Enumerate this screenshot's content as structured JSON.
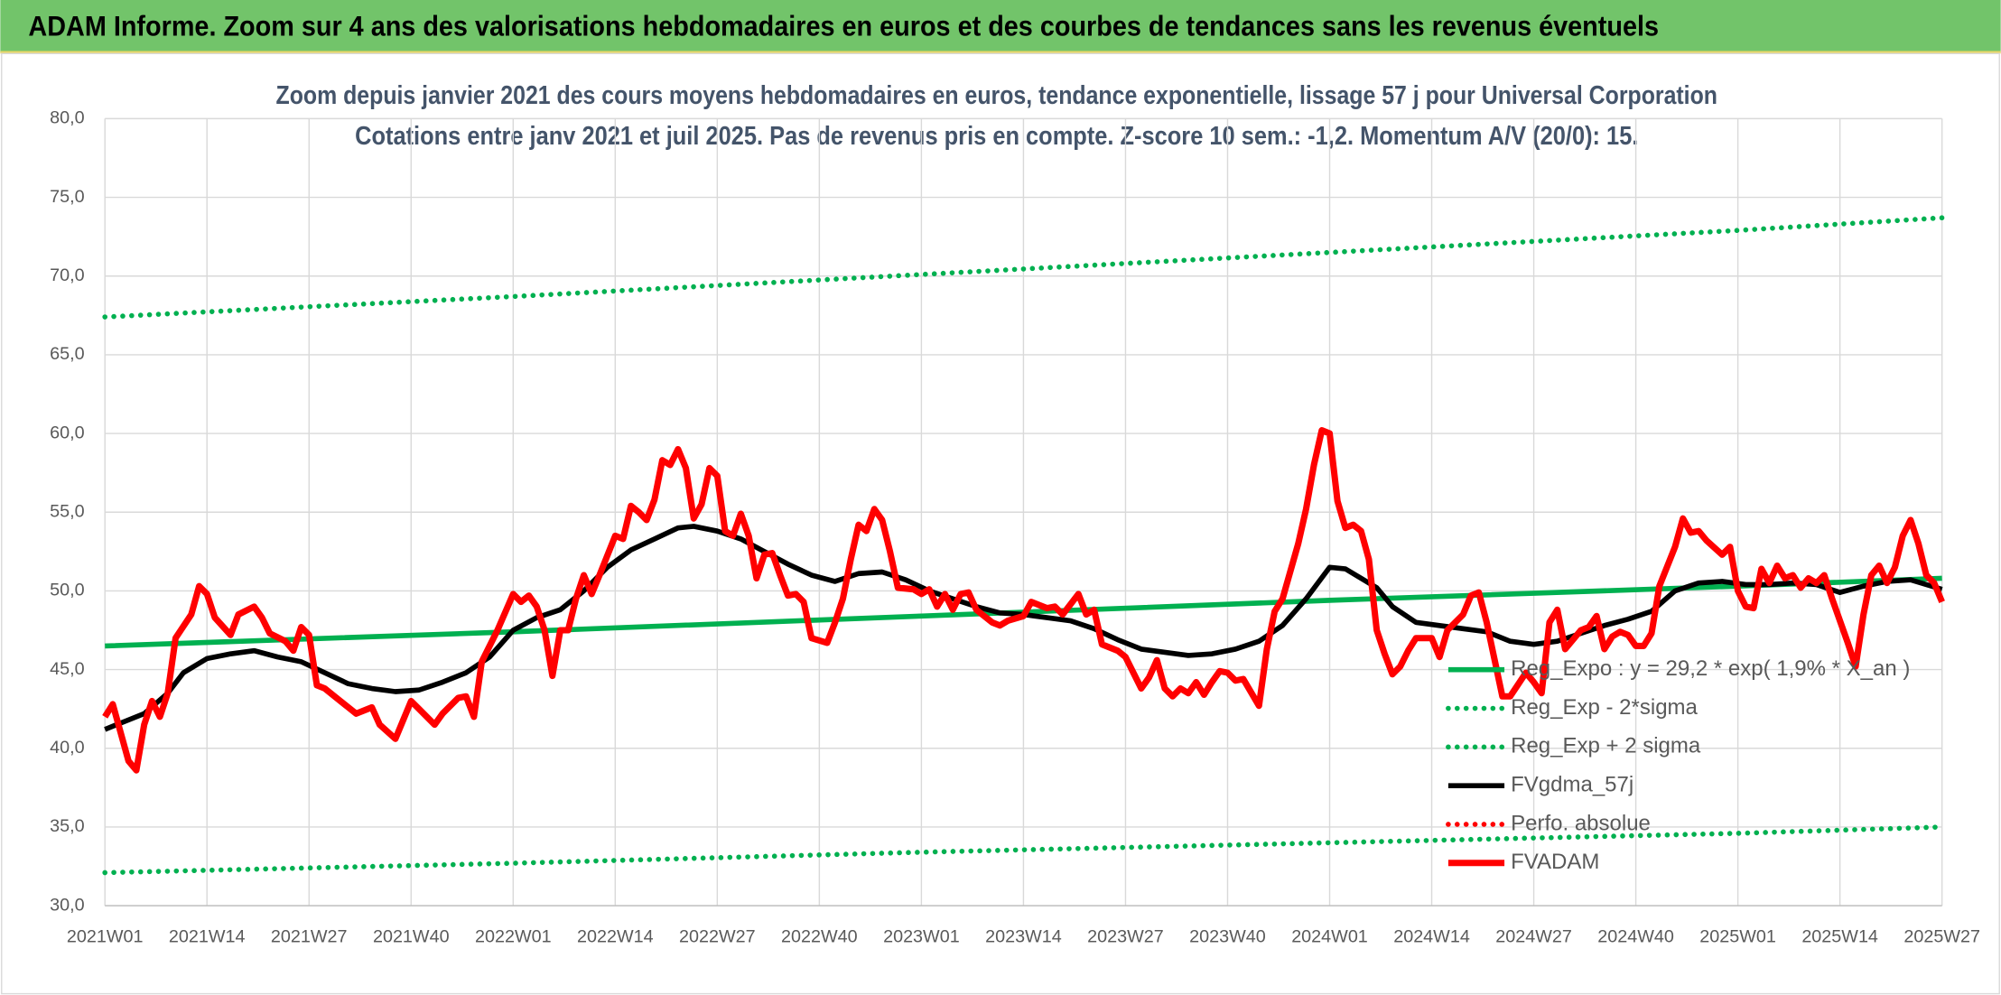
{
  "chart_data": {
    "type": "line",
    "title": "ADAM Informe. Zoom sur 4 ans des valorisations hebdomadaires en euros et des courbes de tendances sans les revenus éventuels",
    "subtitle": [
      "Zoom depuis janvier 2021 des cours moyens hebdomadaires en euros, tendance exponentielle, lissage 57 j pour Universal Corporation",
      "Cotations entre janv 2021 et juil 2025. Pas de revenus pris en compte. Z-score 10 sem.: -1,2. Momentum A/V (20/0): 15."
    ],
    "xlim": [
      0,
      234
    ],
    "xticks": [
      {
        "value": 0,
        "label": "2021W01"
      },
      {
        "value": 13,
        "label": "2021W14"
      },
      {
        "value": 26,
        "label": "2021W27"
      },
      {
        "value": 39,
        "label": "2021W40"
      },
      {
        "value": 52,
        "label": "2022W01"
      },
      {
        "value": 65,
        "label": "2022W14"
      },
      {
        "value": 78,
        "label": "2022W27"
      },
      {
        "value": 91,
        "label": "2022W40"
      },
      {
        "value": 104,
        "label": "2023W01"
      },
      {
        "value": 117,
        "label": "2023W14"
      },
      {
        "value": 130,
        "label": "2023W27"
      },
      {
        "value": 143,
        "label": "2023W40"
      },
      {
        "value": 156,
        "label": "2024W01"
      },
      {
        "value": 169,
        "label": "2024W14"
      },
      {
        "value": 182,
        "label": "2024W27"
      },
      {
        "value": 195,
        "label": "2024W40"
      },
      {
        "value": 208,
        "label": "2025W01"
      },
      {
        "value": 221,
        "label": "2025W14"
      },
      {
        "value": 234,
        "label": "2025W27"
      }
    ],
    "ylim": [
      30,
      80
    ],
    "yticks": [
      {
        "value": 30,
        "label": "30,0"
      },
      {
        "value": 35,
        "label": "35,0"
      },
      {
        "value": 40,
        "label": "40,0"
      },
      {
        "value": 45,
        "label": "45,0"
      },
      {
        "value": 50,
        "label": "50,0"
      },
      {
        "value": 55,
        "label": "55,0"
      },
      {
        "value": 60,
        "label": "60,0"
      },
      {
        "value": 65,
        "label": "65,0"
      },
      {
        "value": 70,
        "label": "70,0"
      },
      {
        "value": 75,
        "label": "75,0"
      },
      {
        "value": 80,
        "label": "80,0"
      }
    ],
    "grid": true,
    "legend": "right",
    "series": [
      {
        "name": "Reg_Expo : y = 29,2 * exp( 1,9% *  X_an )",
        "color": "#00b050",
        "style": "solid",
        "x": [
          0,
          52,
          104,
          156,
          208,
          234
        ],
        "values": [
          46.5,
          47.4,
          48.4,
          49.4,
          50.3,
          50.8
        ]
      },
      {
        "name": "Reg_Exp - 2*sigma",
        "color": "#00b050",
        "style": "dotted",
        "x": [
          0,
          52,
          104,
          156,
          208,
          234
        ],
        "values": [
          32.1,
          32.7,
          33.4,
          34.0,
          34.6,
          35.0
        ]
      },
      {
        "name": "Reg_Exp + 2 sigma",
        "color": "#00b050",
        "style": "dotted",
        "x": [
          0,
          52,
          104,
          156,
          208,
          234
        ],
        "values": [
          67.4,
          68.7,
          70.1,
          71.5,
          72.9,
          73.7
        ]
      },
      {
        "name": "FVgdma_57j",
        "color": "#000000",
        "style": "solid",
        "x": [
          0,
          5,
          8,
          10,
          13,
          16,
          19,
          22,
          25,
          28,
          31,
          34,
          37,
          40,
          43,
          46,
          49,
          52,
          55,
          58,
          61,
          64,
          67,
          70,
          73,
          75,
          78,
          81,
          84,
          87,
          90,
          93,
          96,
          99,
          102,
          105,
          108,
          111,
          114,
          117,
          120,
          123,
          126,
          129,
          132,
          135,
          138,
          141,
          144,
          147,
          150,
          153,
          156,
          158,
          160,
          162,
          164,
          167,
          170,
          173,
          176,
          179,
          182,
          185,
          188,
          191,
          194,
          197,
          200,
          203,
          206,
          209,
          212,
          215,
          218,
          221,
          224,
          227,
          230,
          232,
          234
        ],
        "values": [
          41.2,
          42.2,
          43.5,
          44.8,
          45.7,
          46,
          46.2,
          45.8,
          45.5,
          44.8,
          44.1,
          43.8,
          43.6,
          43.7,
          44.2,
          44.8,
          45.8,
          47.5,
          48.3,
          48.8,
          50,
          51.5,
          52.6,
          53.3,
          54,
          54.1,
          53.8,
          53.3,
          52.5,
          51.7,
          51,
          50.6,
          51.1,
          51.2,
          50.7,
          50,
          49.5,
          49,
          48.6,
          48.5,
          48.3,
          48.1,
          47.6,
          46.9,
          46.3,
          46.1,
          45.9,
          46,
          46.3,
          46.8,
          47.8,
          49.5,
          51.5,
          51.4,
          50.8,
          50.2,
          49,
          48,
          47.8,
          47.6,
          47.4,
          46.8,
          46.6,
          46.8,
          47.3,
          47.8,
          48.2,
          48.7,
          50,
          50.5,
          50.6,
          50.4,
          50.4,
          50.5,
          50.4,
          49.9,
          50.3,
          50.6,
          50.7,
          50.4,
          50.1
        ]
      },
      {
        "name": "Perfo. absolue",
        "color": "#ff0000",
        "style": "dotted",
        "x": [],
        "values": []
      },
      {
        "name": "FVADAM",
        "color": "#ff0000",
        "style": "solid",
        "x": [
          0,
          1,
          3,
          4,
          5,
          6,
          7,
          8,
          9,
          11,
          12,
          13,
          14,
          16,
          17,
          19,
          20,
          21,
          23,
          24,
          25,
          26,
          27,
          28,
          30,
          32,
          34,
          35,
          37,
          38,
          39,
          40,
          42,
          43,
          45,
          46,
          47,
          48,
          50,
          52,
          53,
          54,
          55,
          56,
          57,
          58,
          59,
          60,
          61,
          62,
          63,
          65,
          66,
          67,
          68,
          69,
          70,
          71,
          72,
          73,
          74,
          75,
          76,
          77,
          78,
          79,
          80,
          81,
          82,
          83,
          84,
          85,
          86,
          87,
          88,
          89,
          90,
          92,
          93,
          94,
          95,
          96,
          97,
          98,
          99,
          100,
          101,
          103,
          104,
          105,
          106,
          107,
          108,
          109,
          110,
          111,
          113,
          114,
          115,
          117,
          118,
          120,
          121,
          122,
          124,
          125,
          126,
          127,
          129,
          130,
          132,
          133,
          134,
          135,
          136,
          137,
          138,
          139,
          140,
          141,
          142,
          143,
          144,
          145,
          147,
          148,
          149,
          150,
          152,
          153,
          154,
          155,
          156,
          157,
          158,
          159,
          160,
          161,
          162,
          163,
          164,
          165,
          166,
          167,
          169,
          170,
          171,
          173,
          174,
          175,
          176,
          178,
          179,
          181,
          182,
          183,
          184,
          185,
          186,
          188,
          189,
          190,
          191,
          192,
          193,
          194,
          195,
          196,
          197,
          198,
          200,
          201,
          202,
          203,
          204,
          206,
          207,
          208,
          209,
          210,
          211,
          212,
          213,
          214,
          215,
          216,
          217,
          218,
          219,
          220,
          222,
          223,
          224,
          225,
          226,
          227,
          228,
          229,
          230,
          231,
          232,
          233,
          234
        ],
        "values": [
          42,
          42.8,
          39.2,
          38.6,
          41.5,
          43,
          42,
          43.5,
          47,
          48.5,
          50.3,
          49.8,
          48.3,
          47.2,
          48.5,
          49,
          48.3,
          47.3,
          46.8,
          46.2,
          47.7,
          47.2,
          44,
          43.8,
          43,
          42.2,
          42.6,
          41.5,
          40.6,
          41.8,
          43,
          42.5,
          41.5,
          42.2,
          43.2,
          43.3,
          42,
          45.5,
          47.5,
          49.8,
          49.3,
          49.7,
          49,
          47.5,
          44.6,
          47.5,
          47.5,
          49.5,
          51,
          49.8,
          51,
          53.5,
          53.3,
          55.4,
          55,
          54.5,
          55.8,
          58.3,
          58,
          59,
          57.8,
          54.6,
          55.5,
          57.8,
          57.3,
          53.8,
          53.5,
          54.9,
          53.5,
          50.8,
          52.3,
          52.4,
          51,
          49.7,
          49.8,
          49.3,
          47,
          46.7,
          48,
          49.5,
          52,
          54.2,
          53.8,
          55.2,
          54.5,
          52.5,
          50.2,
          50.1,
          49.8,
          50.1,
          49,
          49.8,
          48.8,
          49.8,
          49.9,
          48.8,
          48,
          47.8,
          48.1,
          48.4,
          49.3,
          48.9,
          49,
          48.5,
          49.8,
          48.5,
          48.8,
          46.6,
          46.2,
          45.8,
          43.8,
          44.5,
          45.6,
          43.8,
          43.3,
          43.8,
          43.5,
          44.2,
          43.4,
          44.2,
          44.9,
          44.8,
          44.3,
          44.4,
          42.7,
          46.3,
          48.7,
          49.5,
          53,
          55.2,
          58,
          60.2,
          60,
          55.7,
          54,
          54.2,
          53.8,
          52,
          47.5,
          46,
          44.7,
          45.2,
          46.2,
          47,
          47,
          45.8,
          47.5,
          48.5,
          49.7,
          49.9,
          48,
          43.3,
          43.3,
          44.8,
          44.2,
          43.5,
          48,
          48.8,
          46.3,
          47.5,
          47.7,
          48.4,
          46.3,
          47.1,
          47.4,
          47.2,
          46.5,
          46.5,
          47.3,
          50.3,
          52.8,
          54.6,
          53.7,
          53.8,
          53.2,
          52.3,
          52.8,
          50,
          49,
          48.9,
          51.4,
          50.5,
          51.6,
          50.8,
          51,
          50.2,
          50.8,
          50.5,
          51,
          49.5,
          46.7,
          45.2,
          48.5,
          51,
          51.6,
          50.5,
          51.5,
          53.5,
          54.5,
          53,
          51,
          50.5,
          49.3
        ]
      }
    ]
  }
}
